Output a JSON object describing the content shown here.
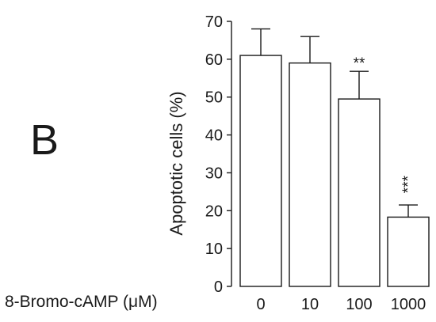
{
  "panel": {
    "letter": "B"
  },
  "chart_data": {
    "type": "bar",
    "categories": [
      "0",
      "10",
      "100",
      "1000"
    ],
    "values": [
      61,
      59,
      49.5,
      18.3
    ],
    "errors": [
      7,
      7,
      7.3,
      3.2
    ],
    "annotations": [
      "",
      "",
      "**",
      "***"
    ],
    "xlabel": "8-Bromo-cAMP (μM)",
    "ylabel": "Apoptotic cells (%)",
    "ylim": [
      0,
      70
    ],
    "yticks": [
      "0",
      "10",
      "20",
      "30",
      "40",
      "50",
      "60",
      "70"
    ],
    "grid": false,
    "legend": "none",
    "bar_fill": "#ffffff",
    "line_color": "#1a1a1a"
  }
}
